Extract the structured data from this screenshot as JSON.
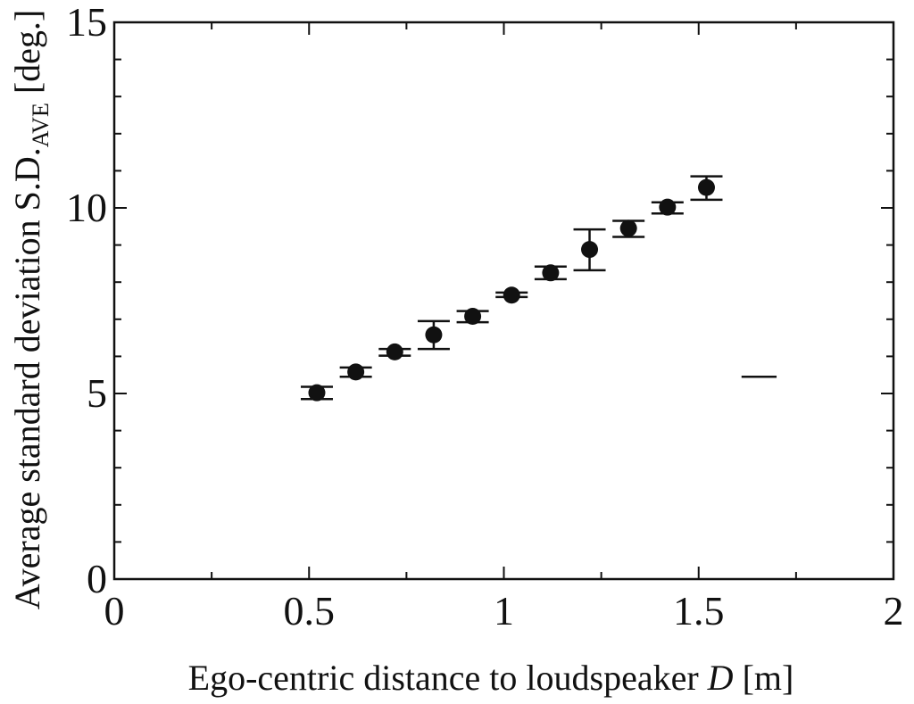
{
  "chart_data": {
    "type": "scatter",
    "title": "",
    "xlabel_main": "Ego-centric distance to loudspeaker ",
    "xlabel_var": "D",
    "xlabel_unit": " [m]",
    "ylabel_main": "Average standard deviation S.D.",
    "ylabel_sub": "AVE",
    "ylabel_unit": " [deg.]",
    "xlim": [
      0,
      2
    ],
    "ylim": [
      0,
      15
    ],
    "x_ticks_major": [
      0,
      0.5,
      1,
      1.5,
      2
    ],
    "x_tick_labels": [
      "0",
      "0.5",
      "1",
      "1.5",
      "2"
    ],
    "y_ticks_major": [
      0,
      5,
      10,
      15
    ],
    "y_tick_labels": [
      "0",
      "5",
      "10",
      "15"
    ],
    "grid": false,
    "legend_marker": {
      "x_range": [
        1.61,
        1.7
      ],
      "y": 5.45
    },
    "series": [
      {
        "x": [
          0.52,
          0.62,
          0.72,
          0.82,
          0.92,
          1.02,
          1.12,
          1.22,
          1.32,
          1.42,
          1.52
        ],
        "y": [
          5.02,
          5.58,
          6.12,
          6.58,
          7.08,
          7.65,
          8.25,
          8.88,
          9.45,
          10.02,
          10.55
        ],
        "err_low": [
          4.85,
          5.45,
          6.02,
          6.2,
          6.92,
          7.6,
          8.08,
          8.32,
          9.22,
          9.85,
          10.22
        ],
        "err_high": [
          5.18,
          5.7,
          6.2,
          6.95,
          7.22,
          7.72,
          8.42,
          9.42,
          9.65,
          10.15,
          10.85
        ]
      }
    ]
  }
}
